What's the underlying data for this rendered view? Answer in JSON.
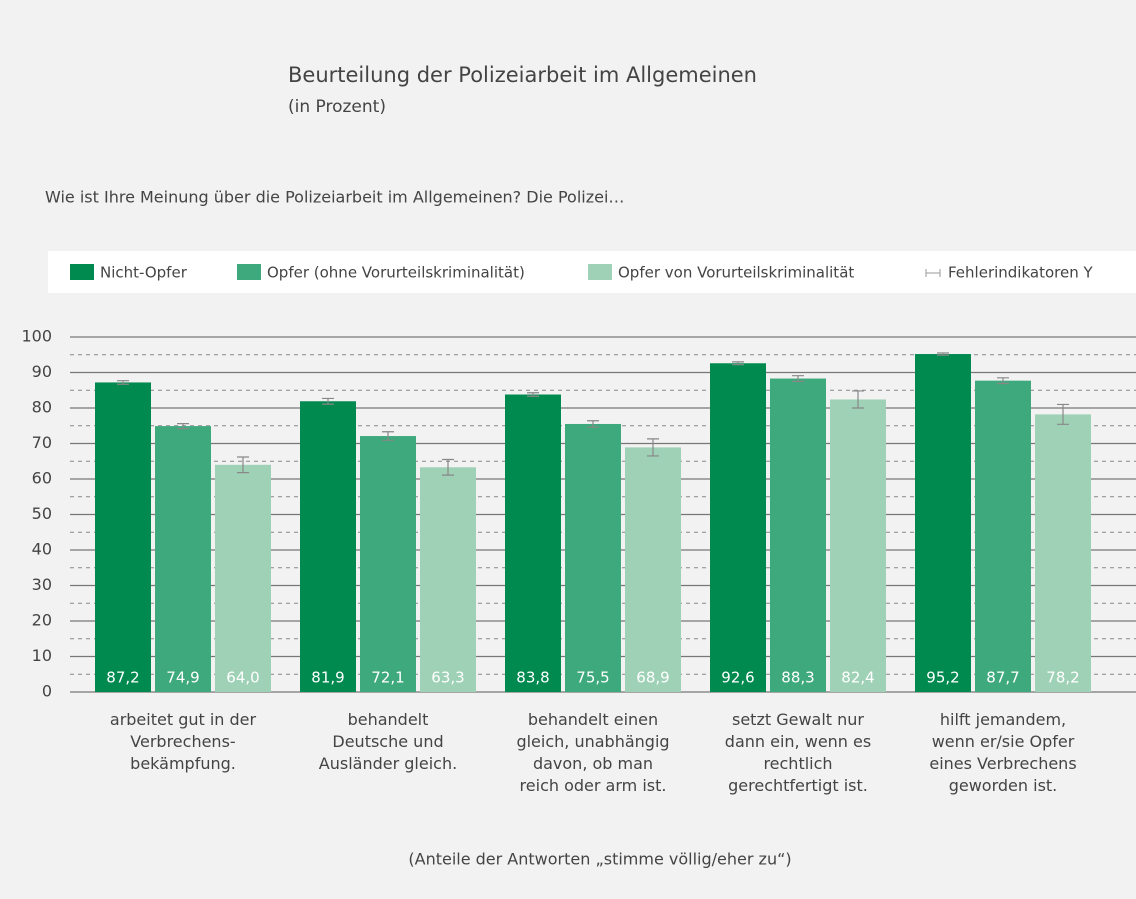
{
  "chart_data": {
    "type": "bar",
    "title": "Beurteilung der Polizeiarbeit im Allgemeinen",
    "subtitle": "(in Prozent)",
    "question": "Wie ist Ihre Meinung über die Polizeiarbeit im Allgemeinen? Die Polizei…",
    "footnote": "(Anteile der Antworten „stimme völlig/eher zu“)",
    "error_legend": "Fehlerindikatoren Y",
    "categories": [
      [
        "arbeitet gut in der",
        "Verbrechens-",
        "bekämpfung."
      ],
      [
        "behandelt",
        "Deutsche und",
        "Ausländer gleich."
      ],
      [
        "behandelt einen",
        "gleich, unabhängig",
        "davon, ob man",
        "reich oder arm ist."
      ],
      [
        "setzt Gewalt nur",
        "dann ein, wenn es",
        "rechtlich",
        "gerechtfertigt ist."
      ],
      [
        "hilft jemandem,",
        "wenn er/sie Opfer",
        "eines Verbrechens",
        "geworden ist."
      ]
    ],
    "series": [
      {
        "name": "Nicht-Opfer",
        "color": "#008a50",
        "values": [
          87.2,
          81.9,
          83.8,
          92.6,
          95.2
        ],
        "value_labels": [
          "87,2",
          "81,9",
          "83,8",
          "92,6",
          "95,2"
        ],
        "errors": [
          0.5,
          0.8,
          0.5,
          0.4,
          0.3
        ]
      },
      {
        "name": "Opfer (ohne Vorurteilskriminalität)",
        "color": "#3ea97c",
        "values": [
          74.9,
          72.1,
          75.5,
          88.3,
          87.7
        ],
        "value_labels": [
          "74,9",
          "72,1",
          "75,5",
          "88,3",
          "87,7"
        ],
        "errors": [
          0.7,
          1.2,
          0.9,
          0.8,
          0.8
        ]
      },
      {
        "name": "Opfer von Vorurteilskriminalität",
        "color": "#9fd1b6",
        "values": [
          64.0,
          63.3,
          68.9,
          82.4,
          78.2
        ],
        "value_labels": [
          "64,0",
          "63,3",
          "68,9",
          "82,4",
          "78,2"
        ],
        "errors": [
          2.2,
          2.2,
          2.4,
          2.4,
          2.8
        ]
      }
    ],
    "ylim": [
      0,
      100
    ],
    "yticks": [
      0,
      10,
      20,
      30,
      40,
      50,
      60,
      70,
      80,
      90,
      100
    ],
    "minor_yticks": [
      5,
      15,
      25,
      35,
      45,
      55,
      65,
      75,
      85,
      95
    ],
    "grid": true
  }
}
